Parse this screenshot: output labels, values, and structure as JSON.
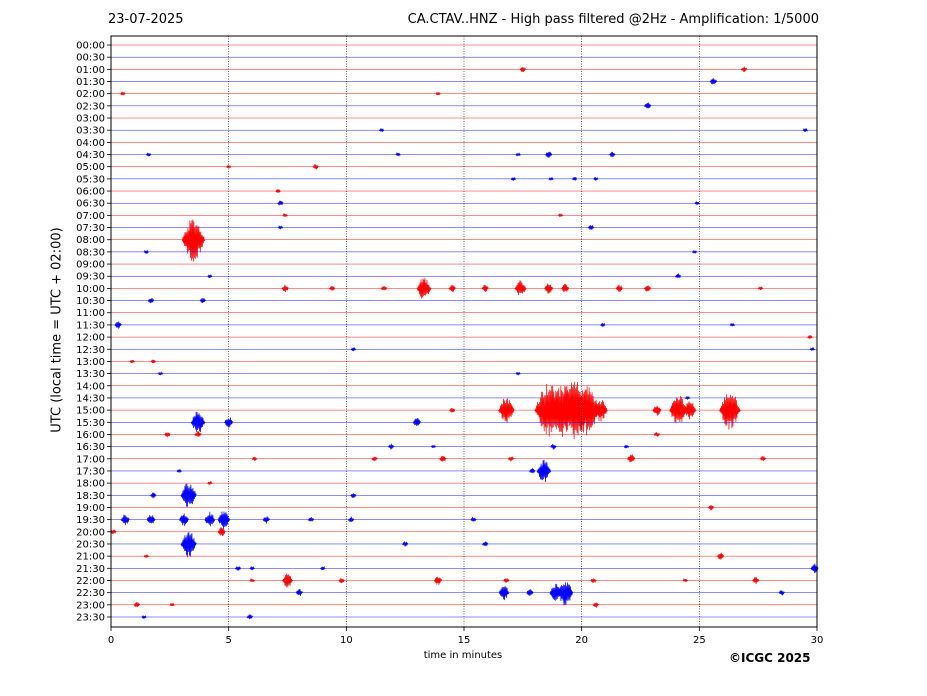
{
  "header": {
    "date": "23-07-2025",
    "title": "CA.CTAV..HNZ - High pass filtered @2Hz - Amplification: 1/5000"
  },
  "footer": {
    "copyright": "©ICGC 2025"
  },
  "colors": {
    "red": "#ff0000",
    "blue": "#0000ff",
    "grid": "#000000"
  },
  "chart_data": {
    "type": "line",
    "title": "CA.CTAV..HNZ - High pass filtered @2Hz - Amplification: 1/5000",
    "xlabel": "time in minutes",
    "ylabel": "UTC (local time = UTC + 02:00)",
    "xlim": [
      0,
      30
    ],
    "x_ticks": [
      "0",
      "5",
      "10",
      "15",
      "20",
      "25",
      "30"
    ],
    "vertical_grid_at": [
      5,
      10,
      15,
      20,
      25
    ],
    "grid": "vertical dotted",
    "legend": "none",
    "series": [
      {
        "label": "00:00",
        "color": "red",
        "events": []
      },
      {
        "label": "00:30",
        "color": "blue",
        "events": []
      },
      {
        "label": "01:00",
        "color": "red",
        "events": [
          {
            "t": 17.5,
            "a": 3
          },
          {
            "t": 26.9,
            "a": 3
          }
        ]
      },
      {
        "label": "01:30",
        "color": "blue",
        "events": [
          {
            "t": 25.6,
            "a": 4
          }
        ]
      },
      {
        "label": "02:00",
        "color": "red",
        "events": [
          {
            "t": 0.5,
            "a": 2
          },
          {
            "t": 13.9,
            "a": 2
          }
        ]
      },
      {
        "label": "02:30",
        "color": "blue",
        "events": [
          {
            "t": 22.8,
            "a": 4
          }
        ]
      },
      {
        "label": "03:00",
        "color": "red",
        "events": []
      },
      {
        "label": "03:30",
        "color": "blue",
        "events": [
          {
            "t": 11.5,
            "a": 2
          },
          {
            "t": 29.5,
            "a": 2
          }
        ]
      },
      {
        "label": "04:00",
        "color": "red",
        "events": []
      },
      {
        "label": "04:30",
        "color": "blue",
        "events": [
          {
            "t": 1.6,
            "a": 2
          },
          {
            "t": 12.2,
            "a": 2
          },
          {
            "t": 17.3,
            "a": 2
          },
          {
            "t": 18.6,
            "a": 4
          },
          {
            "t": 21.3,
            "a": 3
          }
        ]
      },
      {
        "label": "05:00",
        "color": "red",
        "events": [
          {
            "t": 5.0,
            "a": 2
          },
          {
            "t": 8.7,
            "a": 3
          }
        ]
      },
      {
        "label": "05:30",
        "color": "blue",
        "events": [
          {
            "t": 17.1,
            "a": 2
          },
          {
            "t": 18.7,
            "a": 2
          },
          {
            "t": 19.7,
            "a": 2
          },
          {
            "t": 20.6,
            "a": 2
          }
        ]
      },
      {
        "label": "06:00",
        "color": "red",
        "events": [
          {
            "t": 7.1,
            "a": 2
          }
        ]
      },
      {
        "label": "06:30",
        "color": "blue",
        "events": [
          {
            "t": 7.2,
            "a": 3
          },
          {
            "t": 24.9,
            "a": 2
          }
        ]
      },
      {
        "label": "07:00",
        "color": "red",
        "events": [
          {
            "t": 7.4,
            "a": 2
          },
          {
            "t": 19.1,
            "a": 2
          }
        ]
      },
      {
        "label": "07:30",
        "color": "blue",
        "events": [
          {
            "t": 7.2,
            "a": 2
          },
          {
            "t": 20.4,
            "a": 3
          }
        ]
      },
      {
        "label": "08:00",
        "color": "red",
        "events": [
          {
            "t": 3.5,
            "a": 22
          }
        ]
      },
      {
        "label": "08:30",
        "color": "blue",
        "events": [
          {
            "t": 1.5,
            "a": 2
          },
          {
            "t": 24.8,
            "a": 2
          }
        ]
      },
      {
        "label": "09:00",
        "color": "red",
        "events": []
      },
      {
        "label": "09:30",
        "color": "blue",
        "events": [
          {
            "t": 4.2,
            "a": 2
          },
          {
            "t": 24.1,
            "a": 3
          }
        ]
      },
      {
        "label": "10:00",
        "color": "red",
        "events": [
          {
            "t": 7.4,
            "a": 4
          },
          {
            "t": 9.4,
            "a": 3
          },
          {
            "t": 11.6,
            "a": 3
          },
          {
            "t": 13.3,
            "a": 12
          },
          {
            "t": 14.5,
            "a": 4
          },
          {
            "t": 15.9,
            "a": 4
          },
          {
            "t": 17.4,
            "a": 9
          },
          {
            "t": 18.6,
            "a": 6
          },
          {
            "t": 19.3,
            "a": 5
          },
          {
            "t": 21.6,
            "a": 4
          },
          {
            "t": 22.8,
            "a": 4
          },
          {
            "t": 27.6,
            "a": 2
          }
        ]
      },
      {
        "label": "10:30",
        "color": "blue",
        "events": [
          {
            "t": 1.7,
            "a": 3
          },
          {
            "t": 3.9,
            "a": 3
          }
        ]
      },
      {
        "label": "11:00",
        "color": "red",
        "events": []
      },
      {
        "label": "11:30",
        "color": "blue",
        "events": [
          {
            "t": 0.3,
            "a": 4
          },
          {
            "t": 20.9,
            "a": 2
          },
          {
            "t": 26.4,
            "a": 2
          }
        ]
      },
      {
        "label": "12:00",
        "color": "red",
        "events": [
          {
            "t": 29.7,
            "a": 2
          }
        ]
      },
      {
        "label": "12:30",
        "color": "blue",
        "events": [
          {
            "t": 10.3,
            "a": 2
          },
          {
            "t": 29.8,
            "a": 2
          }
        ]
      },
      {
        "label": "13:00",
        "color": "red",
        "events": [
          {
            "t": 0.9,
            "a": 2
          },
          {
            "t": 1.8,
            "a": 2
          }
        ]
      },
      {
        "label": "13:30",
        "color": "blue",
        "events": [
          {
            "t": 2.1,
            "a": 2
          },
          {
            "t": 17.3,
            "a": 2
          }
        ]
      },
      {
        "label": "14:00",
        "color": "red",
        "events": []
      },
      {
        "label": "14:30",
        "color": "blue",
        "events": [
          {
            "t": 24.5,
            "a": 2
          }
        ]
      },
      {
        "label": "15:00",
        "color": "red",
        "events": [
          {
            "t": 14.5,
            "a": 3
          },
          {
            "t": 16.8,
            "a": 14
          },
          {
            "t": 18.6,
            "a": 28
          },
          {
            "t": 19.2,
            "a": 28
          },
          {
            "t": 19.7,
            "a": 30
          },
          {
            "t": 20.2,
            "a": 26
          },
          {
            "t": 20.8,
            "a": 12
          },
          {
            "t": 23.2,
            "a": 6
          },
          {
            "t": 24.1,
            "a": 16
          },
          {
            "t": 24.6,
            "a": 10
          },
          {
            "t": 26.3,
            "a": 20
          }
        ]
      },
      {
        "label": "15:30",
        "color": "blue",
        "events": [
          {
            "t": 3.7,
            "a": 12
          },
          {
            "t": 5.0,
            "a": 6
          },
          {
            "t": 13.0,
            "a": 5
          }
        ]
      },
      {
        "label": "16:00",
        "color": "red",
        "events": [
          {
            "t": 2.4,
            "a": 3
          },
          {
            "t": 3.7,
            "a": 4
          },
          {
            "t": 23.2,
            "a": 3
          }
        ]
      },
      {
        "label": "16:30",
        "color": "blue",
        "events": [
          {
            "t": 11.9,
            "a": 3
          },
          {
            "t": 13.7,
            "a": 2
          },
          {
            "t": 18.8,
            "a": 3
          },
          {
            "t": 21.9,
            "a": 2
          }
        ]
      },
      {
        "label": "17:00",
        "color": "red",
        "events": [
          {
            "t": 6.1,
            "a": 2
          },
          {
            "t": 11.2,
            "a": 3
          },
          {
            "t": 14.1,
            "a": 4
          },
          {
            "t": 17.0,
            "a": 3
          },
          {
            "t": 22.1,
            "a": 5
          },
          {
            "t": 27.7,
            "a": 3
          }
        ]
      },
      {
        "label": "17:30",
        "color": "blue",
        "events": [
          {
            "t": 2.9,
            "a": 2
          },
          {
            "t": 17.9,
            "a": 3
          },
          {
            "t": 18.4,
            "a": 12
          }
        ]
      },
      {
        "label": "18:00",
        "color": "red",
        "events": [
          {
            "t": 4.2,
            "a": 2
          }
        ]
      },
      {
        "label": "18:30",
        "color": "blue",
        "events": [
          {
            "t": 1.8,
            "a": 3
          },
          {
            "t": 3.3,
            "a": 14
          },
          {
            "t": 10.3,
            "a": 3
          }
        ]
      },
      {
        "label": "19:00",
        "color": "red",
        "events": [
          {
            "t": 25.5,
            "a": 3
          }
        ]
      },
      {
        "label": "19:30",
        "color": "blue",
        "events": [
          {
            "t": 0.6,
            "a": 6
          },
          {
            "t": 1.7,
            "a": 6
          },
          {
            "t": 3.1,
            "a": 7
          },
          {
            "t": 4.2,
            "a": 8
          },
          {
            "t": 4.8,
            "a": 10
          },
          {
            "t": 6.6,
            "a": 4
          },
          {
            "t": 8.5,
            "a": 3
          },
          {
            "t": 10.2,
            "a": 3
          },
          {
            "t": 15.4,
            "a": 3
          }
        ]
      },
      {
        "label": "20:00",
        "color": "red",
        "events": [
          {
            "t": 0.1,
            "a": 3
          },
          {
            "t": 4.7,
            "a": 5
          }
        ]
      },
      {
        "label": "20:30",
        "color": "blue",
        "events": [
          {
            "t": 3.3,
            "a": 14
          },
          {
            "t": 12.5,
            "a": 3
          },
          {
            "t": 15.9,
            "a": 3
          }
        ]
      },
      {
        "label": "21:00",
        "color": "red",
        "events": [
          {
            "t": 1.5,
            "a": 2
          },
          {
            "t": 25.9,
            "a": 4
          }
        ]
      },
      {
        "label": "21:30",
        "color": "blue",
        "events": [
          {
            "t": 5.4,
            "a": 3
          },
          {
            "t": 6.0,
            "a": 2
          },
          {
            "t": 9.0,
            "a": 2
          },
          {
            "t": 29.9,
            "a": 5
          }
        ]
      },
      {
        "label": "22:00",
        "color": "red",
        "events": [
          {
            "t": 6.0,
            "a": 2
          },
          {
            "t": 7.5,
            "a": 8
          },
          {
            "t": 9.8,
            "a": 3
          },
          {
            "t": 13.9,
            "a": 5
          },
          {
            "t": 16.8,
            "a": 3
          },
          {
            "t": 20.5,
            "a": 3
          },
          {
            "t": 24.4,
            "a": 2
          },
          {
            "t": 27.4,
            "a": 4
          }
        ]
      },
      {
        "label": "22:30",
        "color": "blue",
        "events": [
          {
            "t": 8.0,
            "a": 4
          },
          {
            "t": 16.7,
            "a": 8
          },
          {
            "t": 17.8,
            "a": 4
          },
          {
            "t": 18.9,
            "a": 10
          },
          {
            "t": 19.3,
            "a": 14
          },
          {
            "t": 28.5,
            "a": 3
          }
        ]
      },
      {
        "label": "23:00",
        "color": "red",
        "events": [
          {
            "t": 1.1,
            "a": 3
          },
          {
            "t": 2.6,
            "a": 2
          },
          {
            "t": 20.6,
            "a": 3
          }
        ]
      },
      {
        "label": "23:30",
        "color": "blue",
        "events": [
          {
            "t": 1.4,
            "a": 2
          },
          {
            "t": 5.9,
            "a": 3
          }
        ]
      }
    ]
  }
}
